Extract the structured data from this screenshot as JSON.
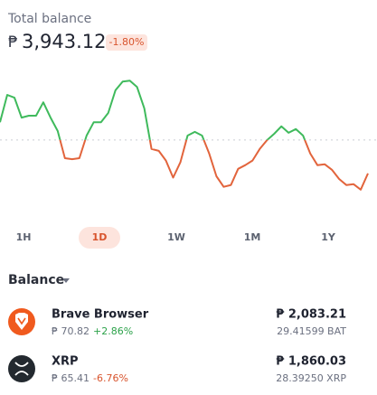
{
  "header": {
    "title": "Total balance",
    "currency": "₱",
    "balance": "3,943.12",
    "change": "-1.80%"
  },
  "chart_data": {
    "type": "line",
    "values": [
      4054,
      4113,
      4107,
      4064,
      4068,
      4068,
      4097,
      4064,
      4035,
      3976,
      3974,
      3976,
      4025,
      4054,
      4054,
      4074,
      4123,
      4142,
      4144,
      4130,
      4084,
      3996,
      3992,
      3971,
      3934,
      3967,
      4025,
      4033,
      4025,
      3986,
      3937,
      3914,
      3918,
      3953,
      3961,
      3971,
      3996,
      4015,
      4029,
      4045,
      4031,
      4039,
      4025,
      3986,
      3961,
      3963,
      3951,
      3931,
      3918,
      3920,
      3908,
      3943
    ],
    "ylim": [
      3890,
      4160
    ],
    "reference": 4015.4,
    "up_color": "#3fba5c",
    "down_color": "#e2643c"
  },
  "ranges": {
    "options": [
      "1H",
      "1D",
      "1W",
      "1M",
      "1Y"
    ],
    "selected": 1
  },
  "balance_section": {
    "title": "Balance"
  },
  "assets": [
    {
      "name": "Brave Browser",
      "price": "₱ 70.82",
      "change": "+2.86%",
      "fiat": "₱ 2,083.21",
      "amount": "29.41599 BAT"
    },
    {
      "name": "XRP",
      "price": "₱ 65.41",
      "change": "-6.76%",
      "fiat": "₱ 1,860.03",
      "amount": "28.39250 XRP"
    }
  ]
}
